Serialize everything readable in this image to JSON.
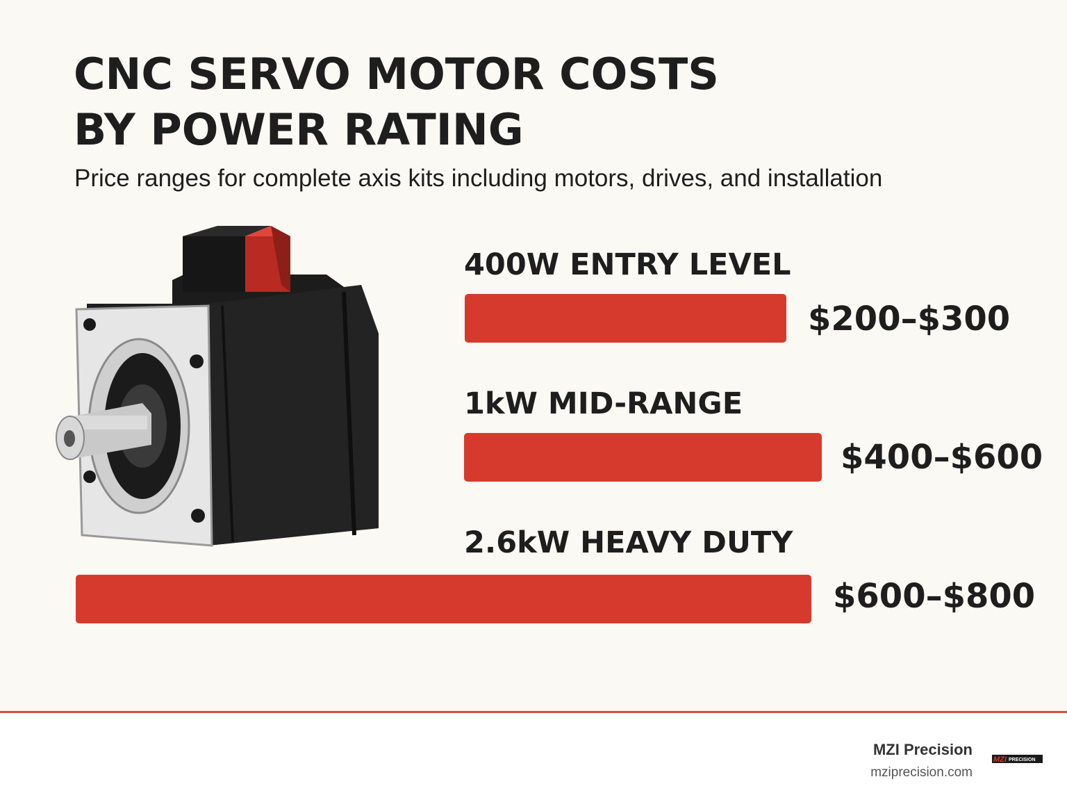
{
  "header": {
    "title_lines": [
      "CNC SERVO MOTOR COSTS",
      "BY POWER RATING"
    ],
    "subtitle": "Price ranges for complete axis kits including motors, drives, and installation"
  },
  "tiers": [
    {
      "label": "400W ENTRY LEVEL",
      "price": "$200–$300"
    },
    {
      "label": "1kW MID-RANGE",
      "price": "$400–$600"
    },
    {
      "label": "2.6kW HEAVY DUTY",
      "price": "$600–$800"
    }
  ],
  "footer": {
    "brand": "MZI Precision",
    "url": "mziprecision.com",
    "logo_main": "MZI",
    "logo_sub": "PRECISION"
  }
}
